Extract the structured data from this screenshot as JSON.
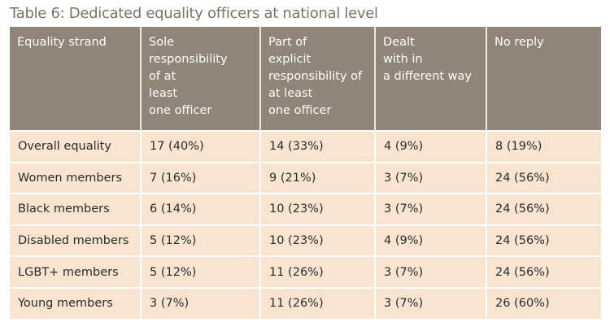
{
  "table": {
    "title": "Table 6: Dedicated equality officers at national level",
    "headers": [
      [
        "Equality strand"
      ],
      [
        "Sole",
        "responsibility",
        "of at",
        "least",
        "one officer"
      ],
      [
        "Part of",
        "explicit",
        "responsibility of",
        "at least",
        "one officer"
      ],
      [
        "Dealt",
        "with in",
        "a different way"
      ],
      [
        "No reply"
      ]
    ],
    "rows": [
      [
        "Overall equality",
        "17 (40%)",
        "14 (33%)",
        "4 (9%)",
        "8 (19%)"
      ],
      [
        "Women members",
        "7 (16%)",
        "9 (21%)",
        "3 (7%)",
        "24 (56%)"
      ],
      [
        "Black members",
        "6 (14%)",
        "10 (23%)",
        "3 (7%)",
        "24 (56%)"
      ],
      [
        "Disabled members",
        "5 (12%)",
        "10 (23%)",
        "4 (9%)",
        "24 (56%)"
      ],
      [
        "LGBT+ members",
        "5 (12%)",
        "11 (26%)",
        "3 (7%)",
        "24 (56%)"
      ],
      [
        "Young members",
        "3 (7%)",
        "11 (26%)",
        "3 (7%)",
        "26 (60%)"
      ]
    ]
  }
}
